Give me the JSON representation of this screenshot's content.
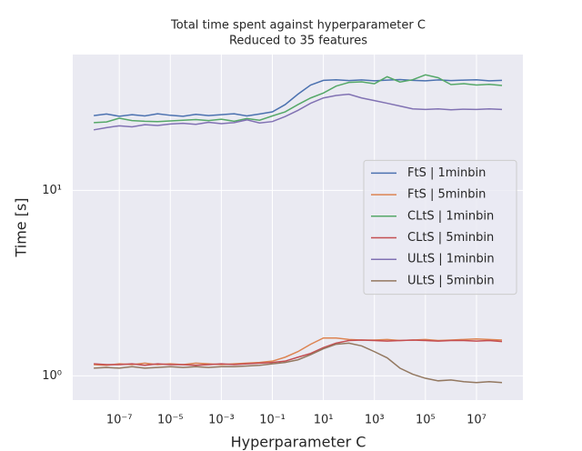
{
  "chart_data": {
    "type": "line",
    "title": "Total time spent against hyperparameter C",
    "subtitle": "Reduced to 35 features",
    "x_label": "Hyperparameter C",
    "y_label": "Time [s]",
    "xscale": "log",
    "yscale": "log",
    "grid": true,
    "legend_loc": "center right",
    "xlim": [
      1.5e-09,
      660000000.0
    ],
    "ylim": [
      0.74,
      54
    ],
    "xticks": [
      {
        "value": 1e-07,
        "label": "10⁻⁷"
      },
      {
        "value": 1e-05,
        "label": "10⁻⁵"
      },
      {
        "value": 0.001,
        "label": "10⁻³"
      },
      {
        "value": 0.1,
        "label": "10⁻¹"
      },
      {
        "value": 10,
        "label": "10¹"
      },
      {
        "value": 1000,
        "label": "10³"
      },
      {
        "value": 100000,
        "label": "10⁵"
      },
      {
        "value": 10000000,
        "label": "10⁷"
      }
    ],
    "yticks": [
      {
        "value": 1,
        "label": "10⁰"
      },
      {
        "value": 10,
        "label": "10¹"
      }
    ],
    "x": [
      1e-08,
      3.16e-08,
      1e-07,
      3.16e-07,
      1e-06,
      3.16e-06,
      1e-05,
      3.16e-05,
      0.0001,
      0.000316,
      0.001,
      0.00316,
      0.01,
      0.0316,
      0.1,
      0.316,
      1,
      3.16,
      10,
      31.6,
      100,
      316,
      1000,
      3160,
      10000,
      31600,
      100000,
      316000,
      1000000,
      3160000,
      10000000,
      31600000,
      100000000
    ],
    "series": [
      {
        "name": "FtS | 1minbin",
        "color": "#4c72b0",
        "values": [
          25.3,
          25.8,
          25.1,
          25.6,
          25.2,
          25.9,
          25.4,
          25.1,
          25.7,
          25.3,
          25.6,
          25.9,
          25.2,
          25.8,
          26.5,
          29,
          33,
          37,
          39.2,
          39.5,
          39.1,
          39.4,
          39.0,
          39.3,
          39.6,
          39.2,
          39.0,
          39.4,
          39.1,
          39.3,
          39.5,
          39.0,
          39.2
        ]
      },
      {
        "name": "FtS | 5minbin",
        "color": "#dd8452",
        "values": [
          1.15,
          1.14,
          1.16,
          1.15,
          1.17,
          1.15,
          1.16,
          1.15,
          1.17,
          1.16,
          1.15,
          1.16,
          1.17,
          1.18,
          1.2,
          1.26,
          1.35,
          1.48,
          1.6,
          1.6,
          1.57,
          1.56,
          1.56,
          1.57,
          1.55,
          1.56,
          1.57,
          1.55,
          1.56,
          1.57,
          1.58,
          1.57,
          1.56
        ]
      },
      {
        "name": "CLtS | 1minbin",
        "color": "#55a868",
        "values": [
          23.2,
          23.4,
          24.5,
          23.8,
          23.6,
          23.5,
          23.7,
          23.9,
          24.1,
          23.8,
          24.2,
          23.6,
          24.4,
          23.9,
          25.2,
          26.5,
          29,
          31.5,
          33.5,
          36.5,
          38.2,
          38.5,
          37.6,
          41,
          38.4,
          39.5,
          42,
          40.5,
          37.2,
          37.6,
          37.0,
          37.3,
          36.8
        ]
      },
      {
        "name": "CLtS | 5minbin",
        "color": "#c44e52",
        "values": [
          1.16,
          1.15,
          1.15,
          1.16,
          1.14,
          1.16,
          1.15,
          1.15,
          1.14,
          1.15,
          1.16,
          1.15,
          1.16,
          1.17,
          1.18,
          1.2,
          1.26,
          1.32,
          1.42,
          1.5,
          1.55,
          1.56,
          1.55,
          1.54,
          1.55,
          1.56,
          1.55,
          1.54,
          1.55,
          1.55,
          1.54,
          1.55,
          1.53
        ]
      },
      {
        "name": "ULtS | 1minbin",
        "color": "#8172b3",
        "values": [
          21.2,
          21.8,
          22.3,
          22.0,
          22.6,
          22.4,
          22.8,
          23.0,
          22.7,
          23.3,
          22.9,
          23.2,
          24,
          23.1,
          23.5,
          25,
          27,
          29.5,
          31.5,
          32.5,
          33,
          31.5,
          30.5,
          29.5,
          28.5,
          27.5,
          27.3,
          27.5,
          27.2,
          27.4,
          27.3,
          27.5,
          27.3
        ]
      },
      {
        "name": "ULtS | 5minbin",
        "color": "#937860",
        "values": [
          1.1,
          1.11,
          1.1,
          1.12,
          1.1,
          1.11,
          1.12,
          1.11,
          1.12,
          1.11,
          1.12,
          1.12,
          1.13,
          1.14,
          1.16,
          1.18,
          1.22,
          1.3,
          1.4,
          1.48,
          1.5,
          1.45,
          1.35,
          1.25,
          1.1,
          1.02,
          0.97,
          0.94,
          0.95,
          0.93,
          0.92,
          0.93,
          0.92
        ]
      }
    ]
  }
}
